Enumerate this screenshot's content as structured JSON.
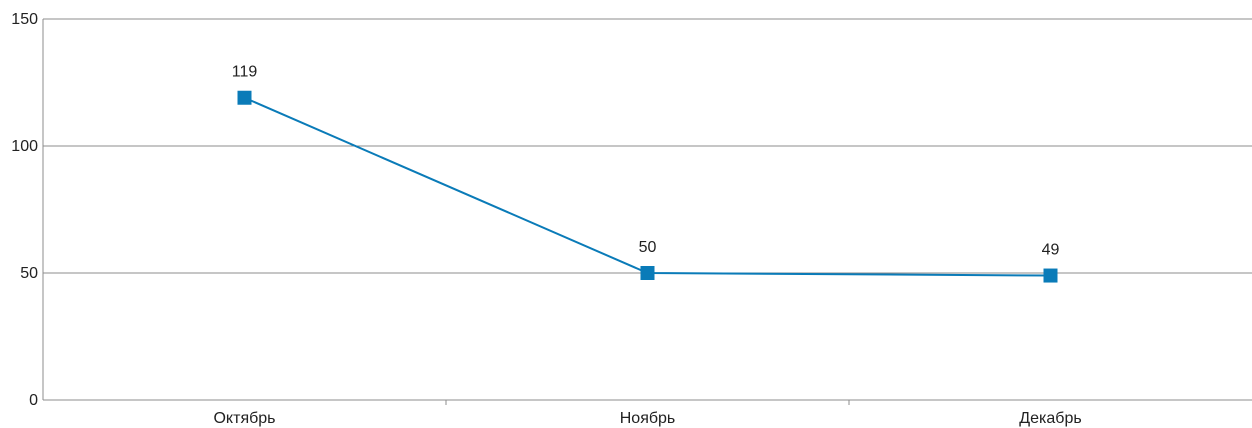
{
  "chart_data": {
    "type": "line",
    "title": "",
    "xlabel": "",
    "ylabel": "",
    "categories": [
      "Октябрь",
      "Ноябрь",
      "Декабрь"
    ],
    "series": [
      {
        "values": [
          119,
          50,
          49
        ],
        "color": "#0a7bb8",
        "marker": "square"
      }
    ],
    "data_labels": [
      "119",
      "50",
      "49"
    ],
    "ylim": [
      0,
      150
    ],
    "yticks": [
      0,
      50,
      100,
      150
    ],
    "ytick_labels": [
      "0",
      "50",
      "100",
      "150"
    ],
    "grid": true,
    "legend": "none"
  }
}
